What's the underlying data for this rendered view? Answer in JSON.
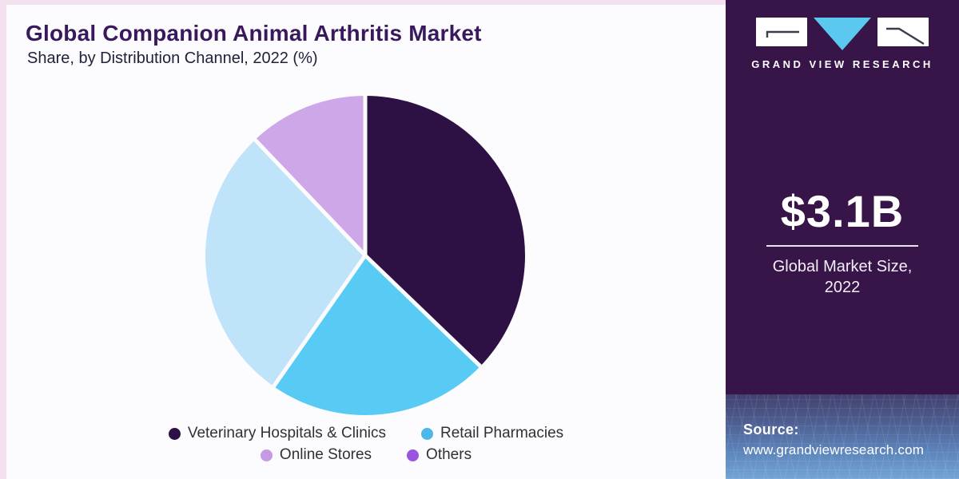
{
  "header": {
    "title": "Global Companion Animal Arthritis Market",
    "subtitle": "Share, by Distribution Channel, 2022 (%)"
  },
  "chart_data": {
    "type": "pie",
    "title": "Global Companion Animal Arthritis Market Share, by Distribution Channel, 2022 (%)",
    "categories": [
      "Veterinary Hospitals & Clinics",
      "Retail Pharmacies",
      "Online Stores",
      "Others"
    ],
    "values": [
      37.2,
      22.5,
      28.2,
      12.1
    ],
    "unit": "%",
    "start_angle_deg": 0,
    "direction": "clockwise",
    "slice_colors": [
      "#2e1144",
      "#58cbf4",
      "#bfe4fa",
      "#cda7e8"
    ],
    "legend_dot_colors": [
      "#2e1144",
      "#4db8e8",
      "#c49ae4",
      "#9955dd"
    ],
    "legend_position": "bottom",
    "legend_rows": [
      [
        0,
        1
      ],
      [
        2,
        3
      ]
    ],
    "data_labels_shown": false
  },
  "sidebar": {
    "brand": "GRAND VIEW RESEARCH",
    "market_size": {
      "value": "$3.1B",
      "label_line1": "Global Market Size,",
      "label_line2": "2022"
    },
    "source": {
      "label": "Source:",
      "url": "www.grandviewresearch.com"
    },
    "colors": {
      "sidebar_bg": "#371549",
      "logo_triangle_blue": "#5bc8f0",
      "title_purple": "#38195e",
      "source_gradient_bottom": "#72a5d6"
    }
  }
}
